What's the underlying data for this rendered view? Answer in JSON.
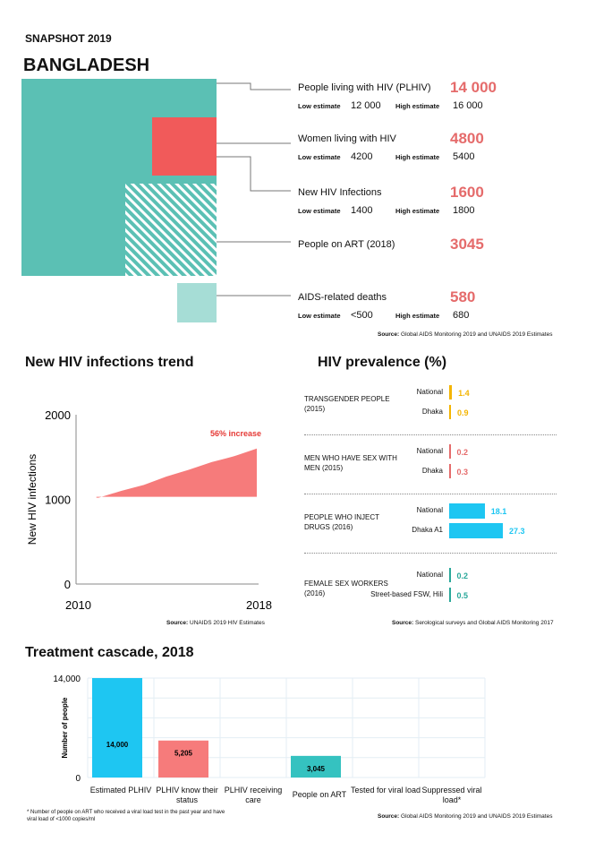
{
  "header": {
    "snapshot": "SNAPSHOT 2019",
    "country": "BANGLADESH"
  },
  "colors": {
    "teal": "#5bc0b4",
    "red": "#f15a5a",
    "light_teal": "#a6ddd6",
    "salmon": "#e56b6b",
    "cyan": "#1ec6f2",
    "yellow": "#f4b400",
    "cascade_red": "#f67b7b",
    "cascade_teal": "#35c2c0"
  },
  "estimates": [
    {
      "label": "People living with HIV (PLHIV)",
      "value": "14 000",
      "low_label": "Low estimate",
      "low": "12 000",
      "high_label": "High estimate",
      "high": "16 000"
    },
    {
      "label": "Women living with HIV",
      "value": "4800",
      "low_label": "Low estimate",
      "low": "4200",
      "high_label": "High estimate",
      "high": "5400"
    },
    {
      "label": "New HIV Infections",
      "value": "1600",
      "low_label": "Low estimate",
      "low": "1400",
      "high_label": "High estimate",
      "high": "1800"
    },
    {
      "label": "People on ART (2018)",
      "value": "3045"
    },
    {
      "label": "AIDS-related deaths",
      "value": "580",
      "low_label": "Low estimate",
      "low": "<500",
      "high_label": "High estimate",
      "high": "680"
    }
  ],
  "estimates_source": {
    "prefix": "Source:",
    "text": " Global AIDS Monitoring 2019 and UNAIDS 2019 Estimates"
  },
  "chart_data": [
    {
      "type": "area",
      "title": "New HIV infections trend",
      "ylabel": "New HIV infections",
      "xlim": [
        2010,
        2018
      ],
      "ylim": [
        0,
        2000
      ],
      "x_ticks": [
        "2010",
        "2018"
      ],
      "y_ticks": [
        "0",
        "1000",
        "2000"
      ],
      "x": [
        2011,
        2012,
        2013,
        2014,
        2015,
        2016,
        2017,
        2018
      ],
      "y": [
        1020,
        1100,
        1170,
        1270,
        1350,
        1440,
        1510,
        1600
      ],
      "annotation": "56% increase",
      "source_prefix": "Source:",
      "source": " UNAIDS 2019 HIV Estimates"
    },
    {
      "type": "bar",
      "title": "HIV prevalence (%)",
      "groups": [
        {
          "name": "TRANSGENDER PEOPLE (2015)",
          "color": "#f4b400",
          "items": [
            {
              "label": "National",
              "value": 1.4
            },
            {
              "label": "Dhaka",
              "value": 0.9
            }
          ]
        },
        {
          "name": "MEN WHO HAVE SEX WITH MEN (2015)",
          "color": "#e56b6b",
          "items": [
            {
              "label": "National",
              "value": 0.2
            },
            {
              "label": "Dhaka",
              "value": 0.3
            }
          ]
        },
        {
          "name": "PEOPLE WHO INJECT DRUGS (2016)",
          "color": "#1ec6f2",
          "items": [
            {
              "label": "National",
              "value": 18.1
            },
            {
              "label": "Dhaka A1",
              "value": 27.3
            }
          ]
        },
        {
          "name": "FEMALE SEX WORKERS (2016)",
          "color": "#2aa89a",
          "items": [
            {
              "label": "National",
              "value": 0.2
            },
            {
              "label": "Street-based FSW, Hili",
              "value": 0.5
            }
          ]
        }
      ],
      "source_prefix": "Source:",
      "source": " Serological surveys and Global AIDS Monitoring 2017"
    },
    {
      "type": "bar",
      "title": "Treatment cascade, 2018",
      "ylabel": "Number of people",
      "ylim": [
        0,
        14000
      ],
      "y_ticks": [
        "0",
        "14,000"
      ],
      "categories": [
        "Estimated PLHIV",
        "PLHIV know their status",
        "PLHIV receiving care",
        "People on ART",
        "Tested for viral load",
        "Suppressed viral load*"
      ],
      "values": [
        14000,
        5205,
        null,
        3045,
        null,
        null
      ],
      "data_labels": [
        "14,000",
        "5,205",
        "",
        "3,045",
        "",
        ""
      ],
      "bar_colors": [
        "#1ec6f2",
        "#f67b7b",
        "",
        "#35c2c0",
        "",
        ""
      ],
      "footnote": "* Number of people on ART who received a viral load test in the past year and have viral load of <1000 copies/ml",
      "source_prefix": "Source:",
      "source": " Global AIDS Monitoring 2019 and UNAIDS 2019 Estimates"
    }
  ]
}
